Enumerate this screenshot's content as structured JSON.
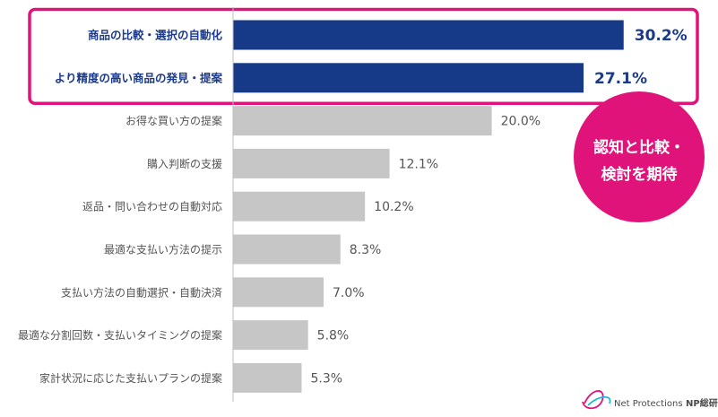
{
  "chart_data": {
    "type": "bar",
    "orientation": "horizontal",
    "categories": [
      "商品の比較・選択の自動化",
      "より精度の高い商品の発見・提案",
      "お得な買い方の提案",
      "購入判断の支援",
      "返品・問い合わせの自動対応",
      "最適な支払い方法の提示",
      "支払い方法の自動選択・自動決済",
      "最適な分割回数・支払いタイミングの提案",
      "家計状況に応じた支払いプランの提案"
    ],
    "values": [
      30.2,
      27.1,
      20.0,
      12.1,
      10.2,
      8.3,
      7.0,
      5.8,
      5.3
    ],
    "value_labels": [
      "30.2%",
      "27.1%",
      "20.0%",
      "12.1%",
      "10.2%",
      "8.3%",
      "7.0%",
      "5.8%",
      "5.3%"
    ],
    "highlighted": [
      0,
      1
    ],
    "xlim": [
      0,
      35
    ],
    "grid": false,
    "colors": {
      "highlight": "#163a88",
      "normal": "#c6c6c6",
      "frame": "#e0137a",
      "axis": "#bdbdbd"
    }
  },
  "badge": {
    "line1": "認知と比較・",
    "line2": "検討を期待",
    "color": "#e0137a"
  },
  "brand": {
    "logo_icon": "np-ribbon-logo-icon",
    "name": "Net Protections",
    "sub": "NP総研"
  }
}
